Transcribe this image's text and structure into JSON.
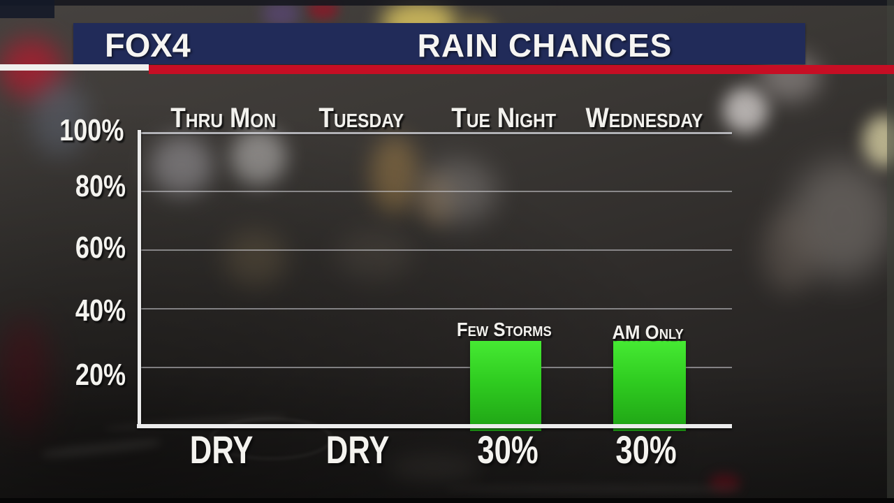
{
  "banner": {
    "logo_text": "FOX4",
    "title": "RAIN CHANCES"
  },
  "chart_data": {
    "type": "bar",
    "title": "RAIN CHANCES",
    "categories": [
      "Thru Mon",
      "Tuesday",
      "Tue Night",
      "Wednesday"
    ],
    "values": [
      0,
      0,
      30,
      30
    ],
    "value_labels": [
      "DRY",
      "DRY",
      "30%",
      "30%"
    ],
    "bar_annotations": [
      "",
      "",
      "Few Storms",
      "AM Only"
    ],
    "y_ticks": [
      "100%",
      "80%",
      "60%",
      "40%",
      "20%"
    ],
    "ylim": [
      0,
      100
    ],
    "grid": true,
    "legend_position": "none",
    "bar_columns_with_bars": [
      "Tue Night",
      "Wednesday"
    ]
  },
  "colors": {
    "navy": "#212b59",
    "red": "#c60e24",
    "stripe-white": "#f0efed",
    "green-top": "#46ea33",
    "green-mid": "#2fcc20",
    "green-bottom": "#1fa315",
    "axis": "#ececec",
    "text": "#f4f3ef"
  }
}
